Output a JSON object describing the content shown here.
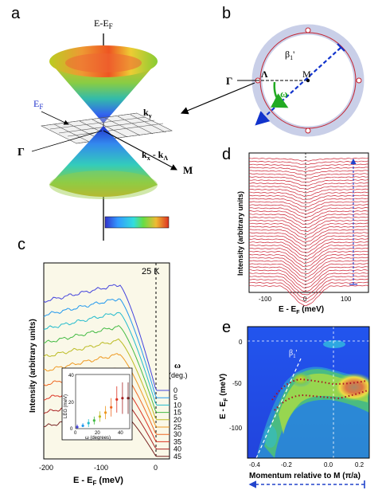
{
  "panel_labels": {
    "a": "a",
    "b": "b",
    "c": "c",
    "d": "d",
    "e": "e"
  },
  "panel_a": {
    "energy_axis": "E-E",
    "energy_axis_sub": "F",
    "fermi_label": "E",
    "fermi_label_sub": "F",
    "ky_label": "k",
    "ky_sub": "y",
    "kx_label": "k",
    "kx_sub1": "x",
    "kx_mid": " - k",
    "kx_sub2": "Λ",
    "gamma_label": "Γ",
    "m_label": "M"
  },
  "panel_b": {
    "gamma_label": "Γ",
    "lambda_label": "Λ",
    "m_label": "M",
    "beta_label": "β",
    "beta_sub": "1",
    "beta_prime": "'",
    "omega_label": "ω"
  },
  "panel_c": {
    "temperature": "25 K",
    "ylabel": "Intensity (arbitrary units)",
    "xlabel": "E - E",
    "xlabel_sub": "F",
    "xlabel_unit": " (meV)",
    "omega_header": "ω",
    "omega_unit": "(deg.)",
    "omega_values": [
      "0",
      "5",
      "10",
      "15",
      "20",
      "25",
      "30",
      "35",
      "40",
      "45"
    ],
    "xticks": [
      "-200",
      "-100",
      "0"
    ],
    "curve_colors": [
      "#4444dd",
      "#2299ee",
      "#22bbcc",
      "#44bb44",
      "#bbbb22",
      "#ee9922",
      "#ee6622",
      "#dd3322",
      "#aa2222",
      "#772222"
    ],
    "inset": {
      "ylabel": "LEG (meV)",
      "xlabel": "ω (degrees)",
      "yticks": [
        "0",
        "20",
        "40"
      ],
      "xticks": [
        "0",
        "20",
        "40"
      ]
    }
  },
  "panel_d": {
    "ylabel": "Intensity (arbitrary units)",
    "xlabel": "E - E",
    "xlabel_sub": "F",
    "xlabel_unit": " (meV)",
    "xticks": [
      "-100",
      "0",
      "100"
    ]
  },
  "panel_e": {
    "ylabel": "E - E",
    "ylabel_sub": "F",
    "ylabel_unit": " (meV)",
    "xlabel": "Momentum relative to M (π/a)",
    "beta_label": "β",
    "beta_sub": "1",
    "beta_prime": "'",
    "yticks": [
      "0",
      "-50",
      "-100"
    ],
    "xticks": [
      "-0.4",
      "-0.2",
      "0.0",
      "0.2"
    ]
  },
  "chart_data": [
    {
      "type": "scatter",
      "panel": "c-inset",
      "xlabel": "ω (degrees)",
      "ylabel": "LEG (meV)",
      "xlim": [
        0,
        45
      ],
      "ylim": [
        0,
        40
      ],
      "x": [
        0,
        5,
        10,
        15,
        20,
        25,
        30,
        35,
        40,
        45
      ],
      "y": [
        0,
        1,
        3,
        5,
        8,
        11,
        15,
        21,
        22,
        22
      ],
      "err": [
        2,
        2,
        3,
        3,
        4,
        5,
        7,
        10,
        12,
        12
      ],
      "colors": [
        "#4444dd",
        "#2299ee",
        "#22bbcc",
        "#44bb44",
        "#bbbb22",
        "#ee9922",
        "#ee6622",
        "#dd3322",
        "#aa2222",
        "#772222"
      ]
    }
  ]
}
